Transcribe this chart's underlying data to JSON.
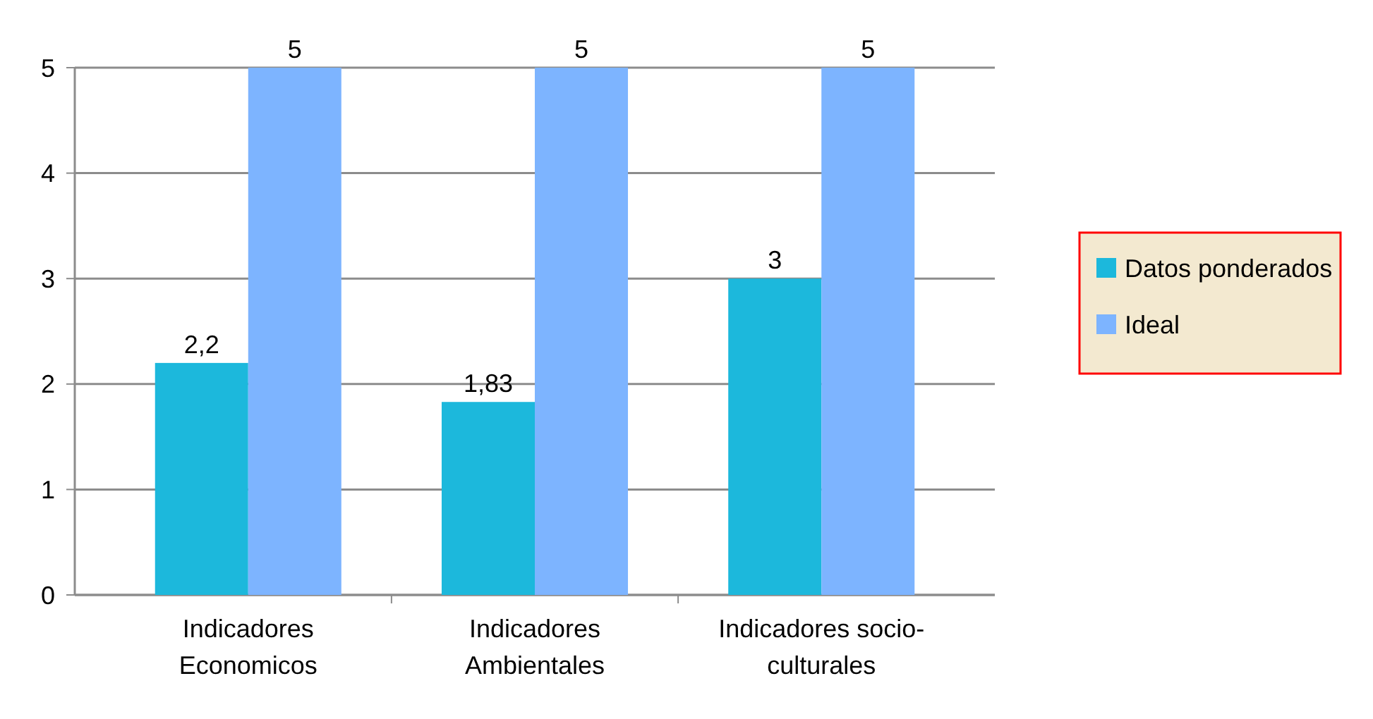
{
  "chart_data": {
    "type": "bar",
    "categories": [
      "Indicadores Economicos",
      "Indicadores Ambientales",
      "Indicadores socio-culturales"
    ],
    "series": [
      {
        "name": "Datos ponderados",
        "color": "#1cb8dc",
        "values": [
          2.2,
          1.83,
          3
        ],
        "value_labels": [
          "2,2",
          "1,83",
          "3"
        ]
      },
      {
        "name": "Ideal",
        "color": "#7db4ff",
        "values": [
          5,
          5,
          5
        ],
        "value_labels": [
          "5",
          "5",
          "5"
        ]
      }
    ],
    "ylim": [
      0,
      5
    ],
    "yticks": [
      0,
      1,
      2,
      3,
      4,
      5
    ],
    "grid": "y",
    "legend": "right"
  }
}
